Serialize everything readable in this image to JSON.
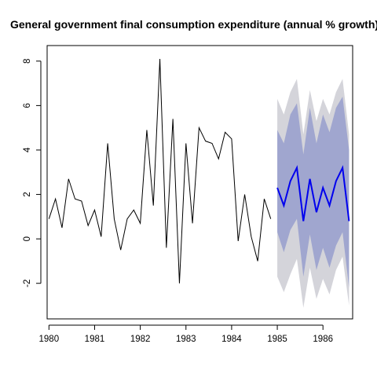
{
  "chart_data": {
    "type": "line",
    "title": "General government final consumption expenditure (annual % growth)",
    "xlabel": "",
    "ylabel": "",
    "xlim": [
      1979.96,
      1986.65
    ],
    "ylim": [
      -3.6,
      8.7
    ],
    "x_ticks": [
      {
        "value": 1980,
        "label": "1980"
      },
      {
        "value": 1981,
        "label": "1981"
      },
      {
        "value": 1982,
        "label": "1982"
      },
      {
        "value": 1983,
        "label": "1983"
      },
      {
        "value": 1984,
        "label": "1984"
      },
      {
        "value": 1985,
        "label": "1985"
      },
      {
        "value": 1986,
        "label": "1986"
      }
    ],
    "y_ticks": [
      {
        "value": -2,
        "label": "-2"
      },
      {
        "value": 0,
        "label": "0"
      },
      {
        "value": 2,
        "label": "2"
      },
      {
        "value": 4,
        "label": "4"
      },
      {
        "value": 6,
        "label": "6"
      },
      {
        "value": 8,
        "label": "8"
      }
    ],
    "grid": false,
    "legend": "none",
    "colors": {
      "history": "#000000",
      "forecast": "#0000ee",
      "band_80": "#a0a6cf",
      "band_95": "#d4d4da"
    },
    "series": [
      {
        "role": "history",
        "x": [
          1980.0,
          1980.143,
          1980.286,
          1980.429,
          1980.571,
          1980.714,
          1980.857,
          1981.0,
          1981.143,
          1981.286,
          1981.429,
          1981.571,
          1981.714,
          1981.857,
          1982.0,
          1982.143,
          1982.286,
          1982.429,
          1982.571,
          1982.714,
          1982.857,
          1983.0,
          1983.143,
          1983.286,
          1983.429,
          1983.571,
          1983.714,
          1983.857,
          1984.0,
          1984.143,
          1984.286,
          1984.429,
          1984.571,
          1984.714,
          1984.857
        ],
        "values": [
          0.9,
          1.8,
          0.5,
          2.7,
          1.8,
          1.7,
          0.6,
          1.3,
          0.1,
          4.3,
          0.9,
          -0.5,
          0.9,
          1.3,
          0.7,
          4.9,
          1.5,
          8.1,
          -0.4,
          5.4,
          -2.0,
          4.3,
          0.7,
          5.0,
          4.4,
          4.3,
          3.6,
          4.8,
          4.5,
          -0.1,
          2.0,
          0.1,
          -1.0,
          1.8,
          0.9
        ]
      },
      {
        "role": "forecast",
        "x": [
          1985.0,
          1985.143,
          1985.286,
          1985.429,
          1985.571,
          1985.714,
          1985.857,
          1986.0,
          1986.143,
          1986.286,
          1986.429,
          1986.571
        ],
        "values": [
          2.3,
          1.5,
          2.6,
          3.2,
          0.8,
          2.7,
          1.2,
          2.3,
          1.5,
          2.6,
          3.2,
          0.8
        ],
        "lo80": [
          0.3,
          -0.6,
          0.4,
          0.9,
          -1.7,
          0.2,
          -1.4,
          -0.4,
          -1.3,
          -0.3,
          0.3,
          -2.2
        ],
        "hi80": [
          4.9,
          4.3,
          5.6,
          6.1,
          3.8,
          5.9,
          4.3,
          5.6,
          4.8,
          5.9,
          6.4,
          4.0
        ],
        "lo95": [
          -1.7,
          -2.4,
          -1.6,
          -0.9,
          -3.1,
          -1.3,
          -2.7,
          -1.8,
          -2.5,
          -1.4,
          -0.8,
          -3.0
        ],
        "hi95": [
          6.3,
          5.6,
          6.6,
          7.2,
          4.7,
          6.7,
          5.3,
          6.3,
          5.6,
          6.6,
          7.2,
          4.7
        ]
      }
    ]
  }
}
